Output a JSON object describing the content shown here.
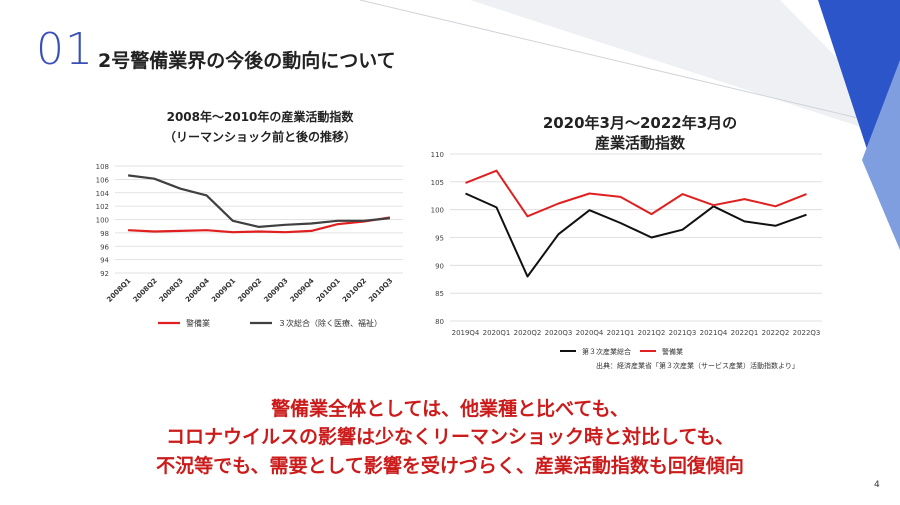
{
  "slide": {
    "number": "01",
    "title": "2号警備業界の今後の動向について",
    "page": "4",
    "headline": [
      "警備業全体としては、他業種と比べても、",
      "コロナウイルスの影響は少なくリーマンショック時と対比しても、",
      "不況等でも、需要として影響を受けづらく、産業活動指数も回復傾向"
    ],
    "source": "出典：経済産業省「第３次産業（サービス産業）活動指数より」",
    "colors": {
      "accent_blue": "#2b55c8",
      "red": "#e02020",
      "dark": "#404040"
    }
  },
  "chart_data": [
    {
      "type": "line",
      "title_line1": "2008年～2010年の産業活動指数",
      "title_line2": "（リーマンショック前と後の推移）",
      "categories": [
        "2008Q1",
        "2008Q2",
        "2008Q3",
        "2008Q4",
        "2009Q1",
        "2009Q2",
        "2009Q3",
        "2009Q4",
        "2010Q1",
        "2010Q2",
        "2010Q3"
      ],
      "ylim": [
        92,
        108
      ],
      "yticks": [
        "92",
        "94",
        "96",
        "98",
        "100",
        "102",
        "104",
        "106",
        "108"
      ],
      "grid": true,
      "legend": "bottom",
      "series": [
        {
          "name": "警備業",
          "color": "#e02020",
          "values": [
            98.4,
            98.2,
            98.3,
            98.4,
            98.1,
            98.2,
            98.1,
            98.3,
            99.3,
            99.7,
            100.3
          ]
        },
        {
          "name": "３次総合（除く医療、福祉）",
          "color": "#404040",
          "values": [
            106.6,
            106.1,
            104.6,
            103.6,
            99.8,
            98.9,
            99.2,
            99.4,
            99.8,
            99.8,
            100.2
          ]
        }
      ]
    },
    {
      "type": "line",
      "title_line1": "2020年3月～2022年3月の",
      "title_line2": "産業活動指数",
      "categories": [
        "2019Q4",
        "2020Q1",
        "2020Q2",
        "2020Q3",
        "2020Q4",
        "2021Q1",
        "2021Q2",
        "2021Q3",
        "2021Q4",
        "2022Q1",
        "2022Q2",
        "2022Q3"
      ],
      "ylim": [
        80,
        110
      ],
      "yticks": [
        "80",
        "85",
        "90",
        "95",
        "100",
        "105",
        "110"
      ],
      "grid": true,
      "legend": "bottom",
      "series": [
        {
          "name": "第３次産業総合",
          "color": "#111111",
          "values": [
            102.9,
            100.4,
            88.0,
            95.6,
            99.9,
            97.6,
            95.0,
            96.4,
            100.6,
            97.9,
            97.1,
            99.1
          ]
        },
        {
          "name": "警備業",
          "color": "#e02020",
          "values": [
            104.8,
            107.0,
            98.8,
            101.1,
            102.9,
            102.3,
            99.2,
            102.8,
            100.8,
            101.9,
            100.6,
            102.8
          ]
        }
      ]
    }
  ]
}
